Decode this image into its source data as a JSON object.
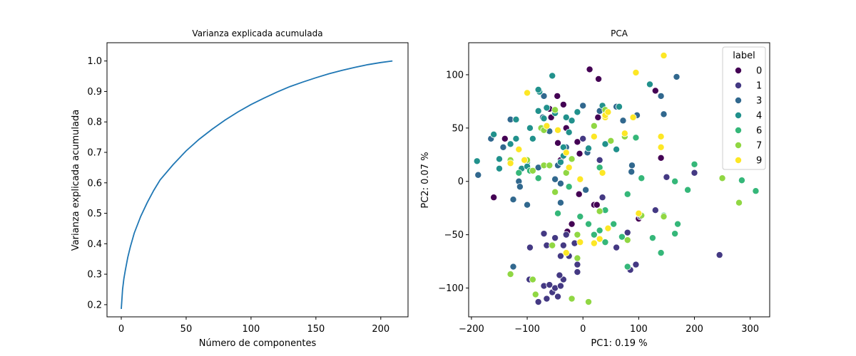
{
  "chart_data": [
    {
      "type": "line",
      "title": "Varianza explicada acumulada",
      "xlabel": "Número de componentes",
      "ylabel": "Varianza explicada acumulada",
      "xlim": [
        -11,
        221
      ],
      "ylim": [
        0.16,
        1.06
      ],
      "xticks": [
        0,
        50,
        100,
        150,
        200
      ],
      "xtick_labels": [
        "0",
        "50",
        "100",
        "150",
        "200"
      ],
      "yticks": [
        0.2,
        0.3,
        0.4,
        0.5,
        0.6,
        0.7,
        0.8,
        0.9,
        1.0
      ],
      "ytick_labels": [
        "0.2",
        "0.3",
        "0.4",
        "0.5",
        "0.6",
        "0.7",
        "0.8",
        "0.9",
        "1.0"
      ],
      "grid": false,
      "color": "#1f77b4",
      "series": [
        {
          "x": [
            0,
            1,
            2,
            3,
            5,
            7,
            10,
            15,
            20,
            25,
            30,
            40,
            50,
            60,
            70,
            80,
            90,
            100,
            110,
            120,
            130,
            140,
            150,
            160,
            170,
            180,
            190,
            200,
            209
          ],
          "values": [
            0.186,
            0.25,
            0.285,
            0.31,
            0.355,
            0.39,
            0.435,
            0.49,
            0.535,
            0.575,
            0.61,
            0.66,
            0.705,
            0.743,
            0.776,
            0.806,
            0.833,
            0.857,
            0.878,
            0.898,
            0.916,
            0.931,
            0.945,
            0.958,
            0.969,
            0.979,
            0.988,
            0.995,
            1.0
          ]
        }
      ]
    },
    {
      "type": "scatter",
      "title": "PCA",
      "xlabel": "PC1: 0.19 %",
      "ylabel": "PC2: 0.07 %",
      "xlim": [
        -205,
        335
      ],
      "ylim": [
        -127,
        130
      ],
      "xticks": [
        -200,
        -100,
        0,
        100,
        200,
        300
      ],
      "xtick_labels": [
        "−200",
        "−100",
        "0",
        "100",
        "200",
        "300"
      ],
      "yticks": [
        -100,
        -50,
        0,
        50,
        100
      ],
      "ytick_labels": [
        "−100",
        "−50",
        "0",
        "50",
        "100"
      ],
      "grid": false,
      "legend": {
        "title": "label",
        "placement": "top-right",
        "entries": [
          {
            "label": "0",
            "color": "#440154"
          },
          {
            "label": "1",
            "color": "#443983"
          },
          {
            "label": "3",
            "color": "#31688e"
          },
          {
            "label": "4",
            "color": "#21918c"
          },
          {
            "label": "6",
            "color": "#35b779"
          },
          {
            "label": "7",
            "color": "#90d743"
          },
          {
            "label": "9",
            "color": "#fde725"
          }
        ]
      },
      "points": [
        [
          12,
          105,
          "0"
        ],
        [
          28,
          96,
          "0"
        ],
        [
          -46,
          80,
          "0"
        ],
        [
          -60,
          68,
          "0"
        ],
        [
          -35,
          72,
          "0"
        ],
        [
          -45,
          36,
          "0"
        ],
        [
          -10,
          37,
          "0"
        ],
        [
          -6,
          26,
          "0"
        ],
        [
          27,
          60,
          "0"
        ],
        [
          -7,
          -12,
          "0"
        ],
        [
          -57,
          60,
          "0"
        ],
        [
          -30,
          50,
          "0"
        ],
        [
          -140,
          40,
          "0"
        ],
        [
          -40,
          20,
          "0"
        ],
        [
          -160,
          -15,
          "0"
        ],
        [
          -28,
          -47,
          "0"
        ],
        [
          -20,
          -40,
          "0"
        ],
        [
          20,
          -22,
          "0"
        ],
        [
          25,
          -22,
          "0"
        ],
        [
          100,
          -35,
          "0"
        ],
        [
          130,
          85,
          "0"
        ],
        [
          140,
          22,
          "0"
        ],
        [
          -90,
          40,
          "0"
        ],
        [
          -96,
          -92,
          "1"
        ],
        [
          -80,
          -113,
          "1"
        ],
        [
          -70,
          -98,
          "1"
        ],
        [
          -65,
          -110,
          "1"
        ],
        [
          -60,
          -97,
          "1"
        ],
        [
          -55,
          -104,
          "1"
        ],
        [
          -50,
          -100,
          "1"
        ],
        [
          -45,
          -108,
          "1"
        ],
        [
          -40,
          -98,
          "1"
        ],
        [
          -35,
          -92,
          "1"
        ],
        [
          -42,
          -88,
          "1"
        ],
        [
          -25,
          -70,
          "1"
        ],
        [
          -10,
          -78,
          "1"
        ],
        [
          -10,
          -85,
          "1"
        ],
        [
          -65,
          -60,
          "1"
        ],
        [
          -70,
          -49,
          "1"
        ],
        [
          -40,
          -70,
          "1"
        ],
        [
          -35,
          -60,
          "1"
        ],
        [
          -95,
          -62,
          "1"
        ],
        [
          -50,
          -53,
          "1"
        ],
        [
          -30,
          -50,
          "1"
        ],
        [
          -15,
          -58,
          "1"
        ],
        [
          60,
          -62,
          "1"
        ],
        [
          85,
          -83,
          "1"
        ],
        [
          95,
          -78,
          "1"
        ],
        [
          130,
          -27,
          "1"
        ],
        [
          150,
          4,
          "1"
        ],
        [
          200,
          8,
          "1"
        ],
        [
          245,
          -69,
          "1"
        ],
        [
          103,
          -33,
          "1"
        ],
        [
          80,
          -48,
          "1"
        ],
        [
          30,
          20,
          "1"
        ],
        [
          35,
          -15,
          "1"
        ],
        [
          0,
          40,
          "1"
        ],
        [
          -188,
          6,
          "3"
        ],
        [
          -165,
          40,
          "3"
        ],
        [
          -143,
          32,
          "3"
        ],
        [
          -130,
          58,
          "3"
        ],
        [
          -120,
          58,
          "3"
        ],
        [
          -115,
          0,
          "3"
        ],
        [
          -113,
          -5,
          "3"
        ],
        [
          -125,
          -17,
          "3"
        ],
        [
          -80,
          13,
          "3"
        ],
        [
          -72,
          60,
          "3"
        ],
        [
          -70,
          80,
          "3"
        ],
        [
          -60,
          47,
          "3"
        ],
        [
          -50,
          2,
          "3"
        ],
        [
          -40,
          -2,
          "3"
        ],
        [
          -40,
          -20,
          "3"
        ],
        [
          -30,
          32,
          "3"
        ],
        [
          0,
          71,
          "3"
        ],
        [
          5,
          -8,
          "3"
        ],
        [
          8,
          27,
          "3"
        ],
        [
          30,
          66,
          "3"
        ],
        [
          60,
          70,
          "3"
        ],
        [
          72,
          57,
          "3"
        ],
        [
          88,
          15,
          "3"
        ],
        [
          97,
          62,
          "3"
        ],
        [
          140,
          80,
          "3"
        ],
        [
          145,
          63,
          "3"
        ],
        [
          168,
          98,
          "3"
        ],
        [
          -125,
          -80,
          "3"
        ],
        [
          87,
          9,
          "3"
        ],
        [
          -45,
          15,
          "3"
        ],
        [
          -100,
          -22,
          "3"
        ],
        [
          -190,
          19,
          "4"
        ],
        [
          -160,
          44,
          "4"
        ],
        [
          -150,
          21,
          "4"
        ],
        [
          -130,
          35,
          "4"
        ],
        [
          -150,
          12,
          "4"
        ],
        [
          -110,
          12,
          "4"
        ],
        [
          -100,
          18,
          "4"
        ],
        [
          -100,
          14,
          "4"
        ],
        [
          -95,
          50,
          "4"
        ],
        [
          -80,
          66,
          "4"
        ],
        [
          -78,
          84,
          "4"
        ],
        [
          -70,
          59,
          "4"
        ],
        [
          -65,
          69,
          "4"
        ],
        [
          -55,
          99,
          "4"
        ],
        [
          -50,
          64,
          "4"
        ],
        [
          -40,
          18,
          "4"
        ],
        [
          -35,
          32,
          "4"
        ],
        [
          -35,
          24,
          "4"
        ],
        [
          -25,
          46,
          "4"
        ],
        [
          -30,
          60,
          "4"
        ],
        [
          -20,
          57,
          "4"
        ],
        [
          -10,
          65,
          "4"
        ],
        [
          10,
          31,
          "4"
        ],
        [
          35,
          71,
          "4"
        ],
        [
          40,
          35,
          "4"
        ],
        [
          60,
          30,
          "4"
        ],
        [
          65,
          70,
          "4"
        ],
        [
          120,
          91,
          "4"
        ],
        [
          -80,
          86,
          "4"
        ],
        [
          -120,
          58,
          "4"
        ],
        [
          -90,
          40,
          "4"
        ],
        [
          -120,
          40,
          "4"
        ],
        [
          -25,
          -5,
          "6"
        ],
        [
          -45,
          -30,
          "6"
        ],
        [
          -5,
          -33,
          "6"
        ],
        [
          10,
          -40,
          "6"
        ],
        [
          20,
          -50,
          "6"
        ],
        [
          30,
          -46,
          "6"
        ],
        [
          40,
          -57,
          "6"
        ],
        [
          40,
          -27,
          "6"
        ],
        [
          55,
          -40,
          "6"
        ],
        [
          70,
          -52,
          "6"
        ],
        [
          80,
          -12,
          "6"
        ],
        [
          95,
          41,
          "6"
        ],
        [
          105,
          3,
          "6"
        ],
        [
          125,
          -53,
          "6"
        ],
        [
          140,
          -67,
          "6"
        ],
        [
          145,
          -32,
          "6"
        ],
        [
          165,
          -49,
          "6"
        ],
        [
          170,
          -40,
          "6"
        ],
        [
          165,
          0,
          "6"
        ],
        [
          188,
          -8,
          "6"
        ],
        [
          200,
          16,
          "6"
        ],
        [
          285,
          1,
          "6"
        ],
        [
          310,
          -9,
          "6"
        ],
        [
          -115,
          8,
          "6"
        ],
        [
          -95,
          10,
          "6"
        ],
        [
          80,
          -80,
          "6"
        ],
        [
          -80,
          3,
          "6"
        ],
        [
          30,
          13,
          "6"
        ],
        [
          -130,
          -87,
          "7"
        ],
        [
          -90,
          -92,
          "7"
        ],
        [
          -85,
          -106,
          "7"
        ],
        [
          -55,
          -60,
          "7"
        ],
        [
          -20,
          -110,
          "7"
        ],
        [
          10,
          -113,
          "7"
        ],
        [
          -10,
          -50,
          "7"
        ],
        [
          -50,
          -10,
          "7"
        ],
        [
          -70,
          15,
          "7"
        ],
        [
          -90,
          10,
          "7"
        ],
        [
          -60,
          15,
          "7"
        ],
        [
          -75,
          50,
          "7"
        ],
        [
          -70,
          48,
          "7"
        ],
        [
          -20,
          21,
          "7"
        ],
        [
          -30,
          8,
          "7"
        ],
        [
          20,
          52,
          "7"
        ],
        [
          40,
          67,
          "7"
        ],
        [
          50,
          38,
          "7"
        ],
        [
          75,
          42,
          "7"
        ],
        [
          80,
          -55,
          "7"
        ],
        [
          105,
          -32,
          "7"
        ],
        [
          145,
          -33,
          "7"
        ],
        [
          250,
          3,
          "7"
        ],
        [
          280,
          -20,
          "7"
        ],
        [
          -130,
          20,
          "7"
        ],
        [
          -100,
          20,
          "7"
        ],
        [
          -50,
          67,
          "7"
        ],
        [
          30,
          -28,
          "7"
        ],
        [
          -10,
          -72,
          "7"
        ],
        [
          -130,
          17,
          "9"
        ],
        [
          -100,
          83,
          "9"
        ],
        [
          -65,
          52,
          "9"
        ],
        [
          -45,
          48,
          "9"
        ],
        [
          -30,
          27,
          "9"
        ],
        [
          -25,
          13,
          "9"
        ],
        [
          -5,
          2,
          "9"
        ],
        [
          -5,
          -57,
          "9"
        ],
        [
          -30,
          -67,
          "9"
        ],
        [
          20,
          -58,
          "9"
        ],
        [
          30,
          -54,
          "9"
        ],
        [
          45,
          -44,
          "9"
        ],
        [
          40,
          60,
          "9"
        ],
        [
          40,
          62,
          "9"
        ],
        [
          45,
          65,
          "9"
        ],
        [
          75,
          45,
          "9"
        ],
        [
          90,
          60,
          "9"
        ],
        [
          95,
          102,
          "9"
        ],
        [
          100,
          -30,
          "9"
        ],
        [
          140,
          42,
          "9"
        ],
        [
          140,
          32,
          "9"
        ],
        [
          145,
          118,
          "9"
        ],
        [
          20,
          42,
          "9"
        ],
        [
          35,
          8,
          "9"
        ],
        [
          -105,
          20,
          "9"
        ],
        [
          -115,
          30,
          "9"
        ]
      ]
    }
  ]
}
